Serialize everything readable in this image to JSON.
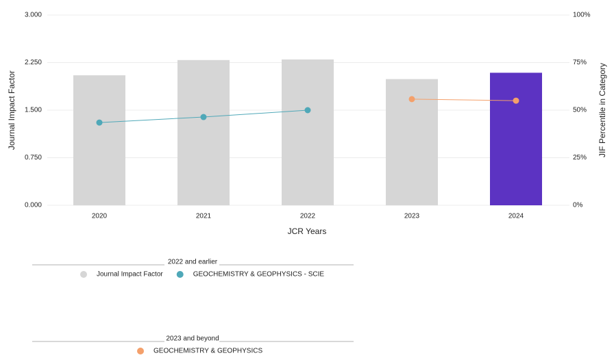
{
  "chart_data": {
    "type": "bar_line",
    "categories": [
      "2020",
      "2021",
      "2022",
      "2023",
      "2024"
    ],
    "xlabel": "JCR Years",
    "ylabel": "Journal Impact Factor",
    "y2label": "JIF Percentile in Category",
    "ylim": [
      0,
      3
    ],
    "yticks": [
      {
        "value": 0,
        "label": "0.000"
      },
      {
        "value": 0.75,
        "label": "0.750"
      },
      {
        "value": 1.5,
        "label": "1.500"
      },
      {
        "value": 2.25,
        "label": "2.250"
      },
      {
        "value": 3,
        "label": "3.000"
      }
    ],
    "y2lim": [
      0,
      100
    ],
    "y2ticks": [
      {
        "value": 0,
        "label": "0%"
      },
      {
        "value": 25,
        "label": "25%"
      },
      {
        "value": 50,
        "label": "50%"
      },
      {
        "value": 75,
        "label": "75%"
      },
      {
        "value": 100,
        "label": "100%"
      }
    ],
    "grid": true,
    "legend_groups": [
      "2022 and earlier",
      "2023 and beyond"
    ],
    "series": [
      {
        "name": "Journal Impact Factor",
        "type": "bar",
        "color": "#d6d6d6",
        "colors": [
          "#d6d6d6",
          "#d6d6d6",
          "#d6d6d6",
          "#d6d6d6",
          "#5c33c2"
        ],
        "values": [
          2.05,
          2.29,
          2.3,
          1.99,
          2.09
        ],
        "legend_group": 0
      },
      {
        "name": "GEOCHEMISTRY & GEOPHYSICS - SCIE",
        "type": "line",
        "axis": "y2",
        "color": "#4fa8b8",
        "values": [
          43.5,
          46.4,
          50.0,
          null,
          null
        ],
        "legend_group": 0
      },
      {
        "name": "GEOCHEMISTRY & GEOPHYSICS",
        "type": "line",
        "axis": "y2",
        "color": "#f4a06b",
        "values": [
          null,
          null,
          null,
          55.8,
          55.0
        ],
        "legend_group": 1
      }
    ]
  }
}
